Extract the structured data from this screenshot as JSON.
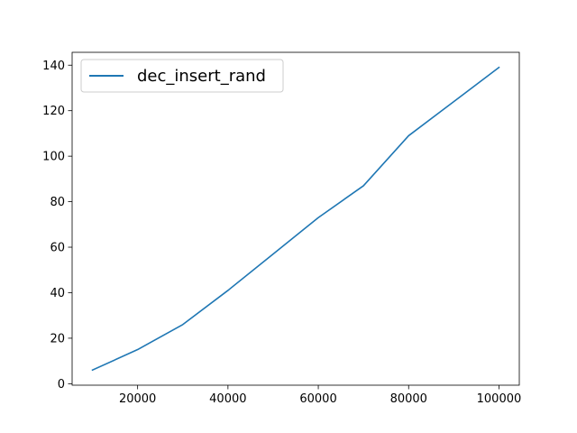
{
  "chart_data": {
    "type": "line",
    "title": "",
    "xlabel": "",
    "ylabel": "",
    "x": [
      10000,
      20000,
      30000,
      40000,
      50000,
      60000,
      70000,
      80000,
      90000,
      100000
    ],
    "series": [
      {
        "name": "dec_insert_rand",
        "values": [
          6,
          15,
          26,
          41,
          57,
          73,
          87,
          109,
          124,
          139
        ],
        "color": "#1f77b4"
      }
    ],
    "xlim": [
      5500,
      104500
    ],
    "ylim": [
      -0.65,
      145.65
    ],
    "xticks": [
      20000,
      40000,
      60000,
      80000,
      100000
    ],
    "yticks": [
      0,
      20,
      40,
      60,
      80,
      100,
      120,
      140
    ],
    "grid": false,
    "legend": "upper left"
  }
}
